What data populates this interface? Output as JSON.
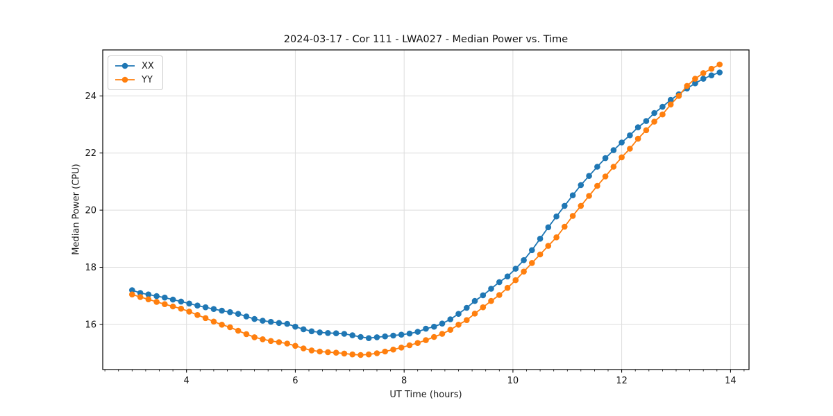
{
  "figure": {
    "title": "2024-03-17 - Cor 111 - LWA027 - Median Power vs. Time",
    "xlabel": "UT Time (hours)",
    "ylabel": "Median Power (CPU)"
  },
  "chart_data": {
    "type": "line",
    "title": "2024-03-17 - Cor 111 - LWA027 - Median Power vs. Time",
    "xlabel": "UT Time (hours)",
    "ylabel": "Median Power (CPU)",
    "xlim": [
      2.46,
      14.34
    ],
    "ylim": [
      14.42,
      25.61
    ],
    "x_ticks": [
      4,
      6,
      8,
      10,
      12,
      14
    ],
    "y_ticks": [
      16,
      18,
      20,
      22,
      24
    ],
    "x_minor_step": 0.25,
    "grid": true,
    "grid_color": "#dddddd",
    "legend_position": "upper left",
    "marker": "o",
    "x": [
      3.0,
      3.15,
      3.3,
      3.45,
      3.6,
      3.75,
      3.9,
      4.05,
      4.2,
      4.35,
      4.5,
      4.65,
      4.8,
      4.95,
      5.1,
      5.25,
      5.4,
      5.55,
      5.7,
      5.85,
      6.0,
      6.15,
      6.3,
      6.45,
      6.6,
      6.75,
      6.9,
      7.05,
      7.2,
      7.35,
      7.5,
      7.65,
      7.8,
      7.95,
      8.1,
      8.25,
      8.4,
      8.55,
      8.7,
      8.85,
      9.0,
      9.15,
      9.3,
      9.45,
      9.6,
      9.75,
      9.9,
      10.05,
      10.2,
      10.35,
      10.5,
      10.65,
      10.8,
      10.95,
      11.1,
      11.25,
      11.4,
      11.55,
      11.7,
      11.85,
      12.0,
      12.15,
      12.3,
      12.45,
      12.6,
      12.75,
      12.9,
      13.05,
      13.2,
      13.35,
      13.5,
      13.65,
      13.8
    ],
    "series": [
      {
        "name": "XX",
        "color": "#1f77b4",
        "values": [
          17.2,
          17.1,
          17.05,
          16.99,
          16.94,
          16.87,
          16.8,
          16.73,
          16.66,
          16.6,
          16.54,
          16.48,
          16.43,
          16.37,
          16.28,
          16.19,
          16.13,
          16.09,
          16.05,
          16.02,
          15.92,
          15.83,
          15.76,
          15.72,
          15.7,
          15.69,
          15.67,
          15.62,
          15.56,
          15.52,
          15.55,
          15.58,
          15.61,
          15.64,
          15.68,
          15.74,
          15.85,
          15.92,
          16.03,
          16.18,
          16.37,
          16.58,
          16.82,
          17.02,
          17.25,
          17.48,
          17.68,
          17.95,
          18.25,
          18.6,
          19.0,
          19.4,
          19.78,
          20.15,
          20.52,
          20.88,
          21.2,
          21.52,
          21.82,
          22.1,
          22.37,
          22.62,
          22.9,
          23.12,
          23.4,
          23.62,
          23.86,
          24.06,
          24.26,
          24.44,
          24.6,
          24.72,
          24.82
        ]
      },
      {
        "name": "YY",
        "color": "#ff7f0e",
        "values": [
          17.05,
          16.96,
          16.88,
          16.79,
          16.71,
          16.63,
          16.55,
          16.45,
          16.33,
          16.22,
          16.1,
          15.99,
          15.9,
          15.78,
          15.66,
          15.55,
          15.48,
          15.42,
          15.38,
          15.33,
          15.25,
          15.16,
          15.09,
          15.05,
          15.03,
          15.01,
          14.98,
          14.95,
          14.93,
          14.95,
          14.99,
          15.05,
          15.12,
          15.19,
          15.27,
          15.35,
          15.45,
          15.56,
          15.67,
          15.81,
          15.99,
          16.15,
          16.38,
          16.6,
          16.82,
          17.03,
          17.28,
          17.55,
          17.85,
          18.15,
          18.45,
          18.75,
          19.05,
          19.42,
          19.8,
          20.15,
          20.5,
          20.85,
          21.18,
          21.52,
          21.85,
          22.15,
          22.5,
          22.8,
          23.1,
          23.35,
          23.7,
          24.0,
          24.35,
          24.6,
          24.8,
          24.95,
          25.1
        ]
      }
    ]
  }
}
